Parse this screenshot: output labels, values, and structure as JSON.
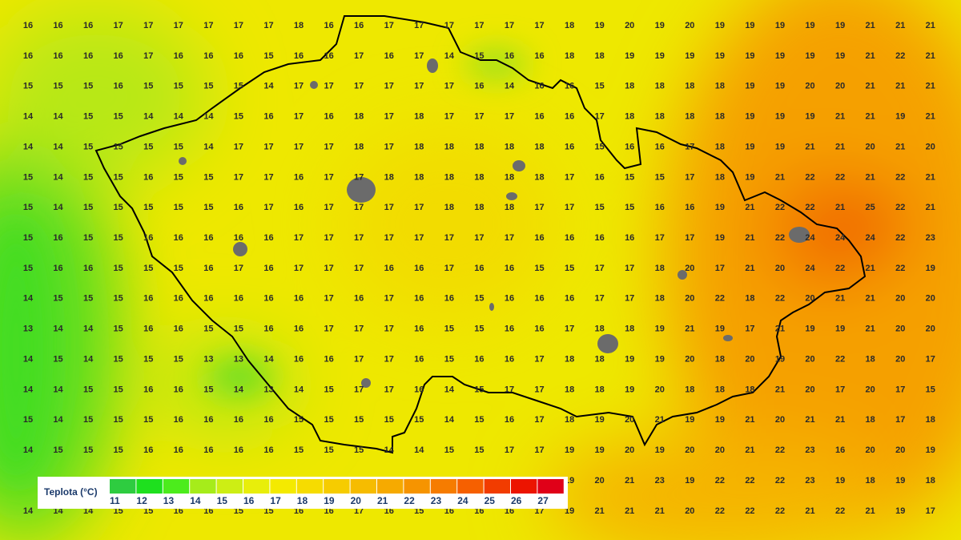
{
  "grid": {
    "rows": [
      [
        16,
        16,
        16,
        17,
        17,
        17,
        17,
        17,
        17,
        18,
        16,
        16,
        17,
        17,
        17,
        17,
        17,
        17,
        18,
        19,
        20,
        19,
        20,
        19,
        19,
        19,
        19,
        19,
        21,
        21,
        21
      ],
      [
        16,
        16,
        16,
        16,
        17,
        16,
        16,
        16,
        15,
        16,
        16,
        17,
        16,
        17,
        14,
        15,
        16,
        16,
        18,
        18,
        19,
        19,
        19,
        19,
        19,
        19,
        19,
        19,
        21,
        22,
        21
      ],
      [
        15,
        15,
        15,
        16,
        15,
        15,
        15,
        15,
        14,
        17,
        17,
        17,
        17,
        17,
        17,
        16,
        14,
        16,
        16,
        15,
        18,
        18,
        18,
        18,
        19,
        19,
        20,
        20,
        21,
        21,
        21
      ],
      [
        14,
        14,
        15,
        15,
        14,
        14,
        14,
        15,
        16,
        17,
        16,
        18,
        17,
        18,
        17,
        17,
        17,
        16,
        16,
        17,
        18,
        18,
        18,
        18,
        19,
        19,
        19,
        21,
        21,
        19,
        21
      ],
      [
        14,
        14,
        15,
        15,
        15,
        15,
        14,
        17,
        17,
        17,
        17,
        18,
        17,
        18,
        18,
        18,
        18,
        18,
        16,
        15,
        16,
        16,
        17,
        18,
        19,
        19,
        21,
        21,
        20,
        21,
        20
      ],
      [
        15,
        14,
        15,
        15,
        16,
        15,
        15,
        17,
        17,
        16,
        17,
        17,
        18,
        18,
        18,
        18,
        18,
        18,
        17,
        16,
        15,
        15,
        17,
        18,
        19,
        21,
        22,
        22,
        21,
        22,
        21
      ],
      [
        15,
        14,
        15,
        15,
        15,
        15,
        15,
        16,
        17,
        16,
        17,
        17,
        17,
        17,
        18,
        18,
        18,
        17,
        17,
        15,
        15,
        16,
        16,
        19,
        21,
        22,
        22,
        21,
        25,
        22,
        21
      ],
      [
        15,
        16,
        15,
        15,
        16,
        16,
        16,
        16,
        16,
        17,
        17,
        17,
        17,
        17,
        17,
        17,
        17,
        16,
        16,
        16,
        16,
        17,
        17,
        19,
        21,
        22,
        24,
        24,
        24,
        22,
        23
      ],
      [
        15,
        16,
        16,
        15,
        15,
        15,
        16,
        17,
        16,
        17,
        17,
        17,
        16,
        16,
        17,
        16,
        16,
        15,
        15,
        17,
        17,
        18,
        20,
        17,
        21,
        20,
        24,
        22,
        21,
        22,
        19
      ],
      [
        14,
        15,
        15,
        15,
        16,
        16,
        16,
        16,
        16,
        16,
        17,
        16,
        17,
        16,
        16,
        15,
        16,
        16,
        16,
        17,
        17,
        18,
        20,
        22,
        18,
        22,
        20,
        21,
        21,
        20,
        20
      ],
      [
        13,
        14,
        14,
        15,
        16,
        16,
        15,
        15,
        16,
        16,
        17,
        17,
        17,
        16,
        15,
        15,
        16,
        16,
        17,
        18,
        18,
        19,
        21,
        19,
        17,
        21,
        19,
        19,
        21,
        20,
        20
      ],
      [
        14,
        15,
        14,
        15,
        15,
        15,
        13,
        13,
        14,
        16,
        16,
        17,
        17,
        16,
        15,
        16,
        16,
        17,
        18,
        18,
        19,
        19,
        20,
        18,
        20,
        19,
        20,
        22,
        18,
        20,
        17
      ],
      [
        14,
        14,
        15,
        15,
        16,
        16,
        15,
        14,
        13,
        14,
        15,
        17,
        17,
        16,
        14,
        15,
        17,
        17,
        18,
        18,
        19,
        20,
        18,
        18,
        18,
        21,
        20,
        17,
        20,
        17,
        15
      ],
      [
        15,
        14,
        15,
        15,
        15,
        16,
        16,
        16,
        16,
        15,
        15,
        15,
        15,
        15,
        14,
        15,
        16,
        17,
        18,
        19,
        20,
        21,
        19,
        19,
        21,
        20,
        21,
        21,
        18,
        17,
        18
      ],
      [
        14,
        15,
        15,
        15,
        16,
        16,
        16,
        16,
        16,
        15,
        15,
        15,
        14,
        14,
        15,
        15,
        17,
        17,
        19,
        19,
        20,
        19,
        20,
        20,
        21,
        22,
        23,
        16,
        20,
        20,
        19
      ],
      [
        null,
        null,
        null,
        null,
        null,
        null,
        null,
        null,
        null,
        null,
        null,
        null,
        null,
        null,
        null,
        null,
        null,
        null,
        19,
        20,
        21,
        23,
        19,
        22,
        22,
        22,
        23,
        19,
        18,
        19,
        18
      ],
      [
        14,
        14,
        14,
        15,
        15,
        16,
        16,
        15,
        15,
        16,
        16,
        17,
        16,
        15,
        16,
        16,
        16,
        17,
        19,
        21,
        21,
        21,
        20,
        22,
        22,
        22,
        21,
        22,
        21,
        19,
        17
      ]
    ]
  },
  "legend": {
    "title": "Teplota (°C)",
    "items": [
      {
        "value": 11,
        "color": "#2ecc40"
      },
      {
        "value": 12,
        "color": "#1ee01e"
      },
      {
        "value": 13,
        "color": "#4cec1c"
      },
      {
        "value": 14,
        "color": "#a6ec1a"
      },
      {
        "value": 15,
        "color": "#cdee14"
      },
      {
        "value": 16,
        "color": "#e8ee0a"
      },
      {
        "value": 17,
        "color": "#f4ea00"
      },
      {
        "value": 18,
        "color": "#f6dc00"
      },
      {
        "value": 19,
        "color": "#f6cc00"
      },
      {
        "value": 20,
        "color": "#f6bc00"
      },
      {
        "value": 21,
        "color": "#f6aa00"
      },
      {
        "value": 22,
        "color": "#f69400"
      },
      {
        "value": 23,
        "color": "#f67c00"
      },
      {
        "value": 24,
        "color": "#f66000"
      },
      {
        "value": 25,
        "color": "#f23c00"
      },
      {
        "value": 26,
        "color": "#ec1400"
      },
      {
        "value": 27,
        "color": "#e00018"
      }
    ]
  }
}
